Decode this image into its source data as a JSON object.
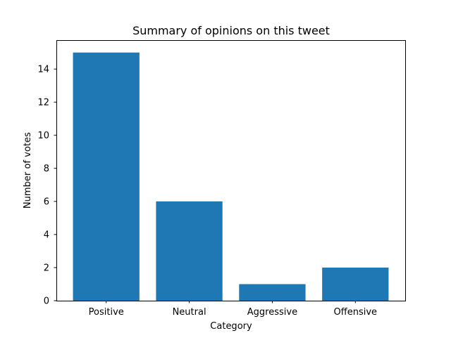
{
  "chart_data": {
    "type": "bar",
    "title": "Summary of opinions on this tweet",
    "xlabel": "Category",
    "ylabel": "Number of votes",
    "categories": [
      "Positive",
      "Neutral",
      "Aggressive",
      "Offensive"
    ],
    "values": [
      15,
      6,
      1,
      2
    ],
    "ylim": [
      0,
      15.75
    ],
    "yticks": [
      0,
      2,
      4,
      6,
      8,
      10,
      12,
      14
    ],
    "grid": false,
    "bar_color": "#1f77b4"
  }
}
